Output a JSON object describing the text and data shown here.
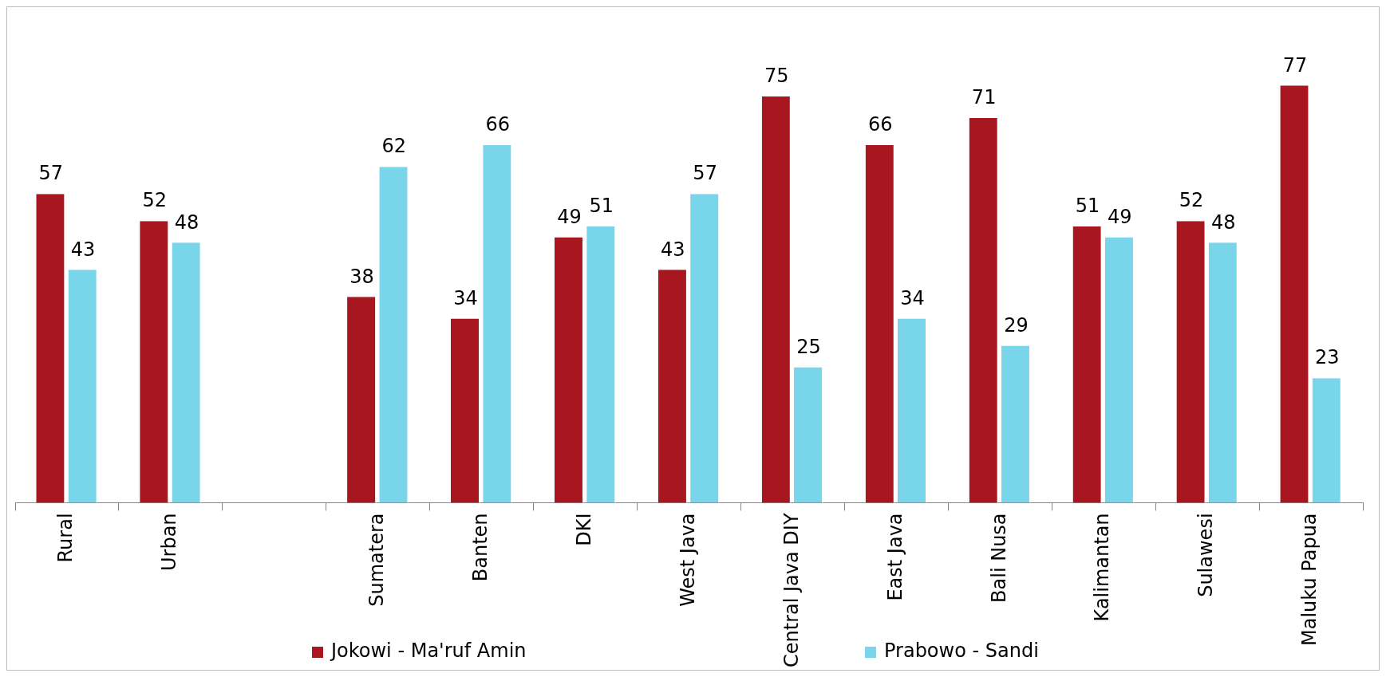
{
  "chart_data": {
    "type": "bar",
    "categories": [
      "Rural",
      "Urban",
      null,
      "Sumatera",
      "Banten",
      "DKI",
      "West Java",
      "Central Java DIY",
      "East Java",
      "Bali Nusa",
      "Kalimantan",
      "Sulawesi",
      "Maluku Papua"
    ],
    "series": [
      {
        "name": "Jokowi - Ma'ruf Amin",
        "color": "#a8171f",
        "values": [
          57,
          52,
          null,
          38,
          34,
          49,
          43,
          75,
          66,
          71,
          51,
          52,
          77
        ]
      },
      {
        "name": "Prabowo - Sandi",
        "color": "#79d5ea",
        "values": [
          43,
          48,
          null,
          62,
          66,
          51,
          57,
          25,
          34,
          29,
          49,
          48,
          23
        ]
      }
    ],
    "tick_labels": "x",
    "data_labels": true,
    "legend": "bottom"
  }
}
